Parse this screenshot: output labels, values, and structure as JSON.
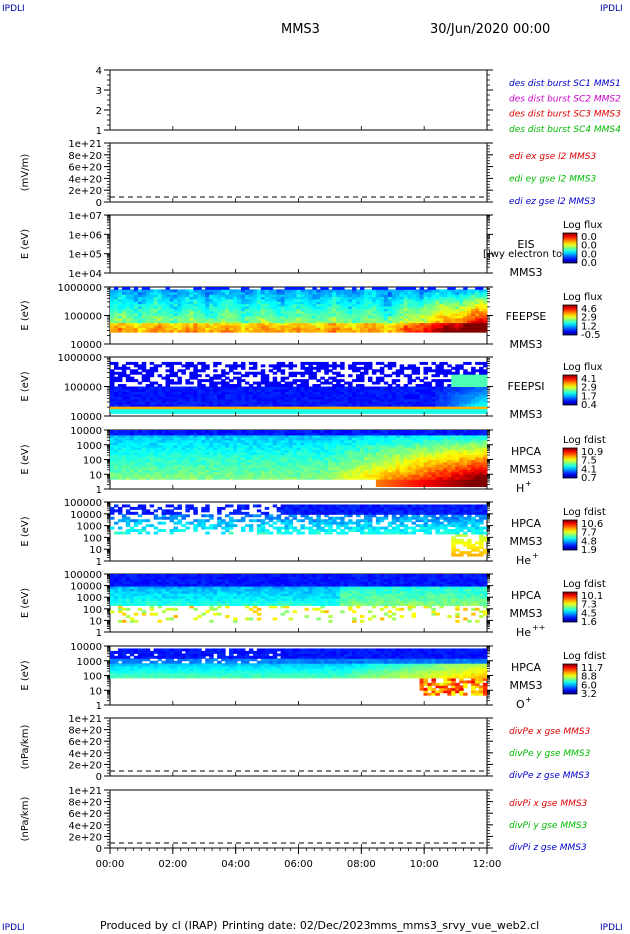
{
  "header": {
    "corner_label": "IPDLI",
    "spacecraft": "MMS3",
    "datetime": "30/Jun/2020 00:00"
  },
  "footer": {
    "produced_by": "Produced by cl (IRAP)",
    "printing_date": "Printing date: 02/Dec/2023",
    "script_name": "mms_mms3_srvy_vue_web2.cl"
  },
  "colors": {
    "blue": "#0000cc",
    "magenta": "#cc00cc",
    "red": "#dd0000",
    "green": "#00bb00",
    "axis": "#000000"
  },
  "chart_data": [
    {
      "type": "line",
      "panel": "burst-intervals",
      "yticks": [
        "1",
        "2",
        "3",
        "4"
      ],
      "ylim": [
        0.7,
        4.3
      ],
      "legend": [
        {
          "text": "des dist burst SC1 MMS1",
          "color": "blue"
        },
        {
          "text": "des dist burst SC2 MMS2",
          "color": "magenta"
        },
        {
          "text": "des dist burst SC3 MMS3",
          "color": "red"
        },
        {
          "text": "des dist burst SC4 MMS4",
          "color": "green"
        }
      ]
    },
    {
      "type": "line",
      "panel": "edi-efield",
      "ylabel": "(mV/m)",
      "yticks": [
        "0",
        "2e+20",
        "4e+20",
        "6e+20",
        "8e+20",
        "1e+21"
      ],
      "ylim": [
        0,
        1e+21
      ],
      "zero_line": true,
      "legend": [
        {
          "text": "edi ex gse l2 MMS3",
          "color": "red"
        },
        {
          "text": "edi ey gse l2 MMS3",
          "color": "green"
        },
        {
          "text": "edi ez gse l2 MMS3",
          "color": "blue"
        }
      ]
    },
    {
      "type": "heatmap",
      "panel": "eis",
      "ylabel": "E (eV)",
      "yticks": [
        "1e+04",
        "1e+05",
        "1e+06",
        "1e+07"
      ],
      "log": true,
      "instrument": "EIS",
      "sc": "MMS3",
      "overlay_text": "[]wy electron to",
      "cbar_title": "Log flux",
      "cbar_ticks": [
        "0.0",
        "0.0",
        "0.0",
        "0.0"
      ]
    },
    {
      "type": "heatmap",
      "panel": "feeps-electrons",
      "ylabel": "E (eV)",
      "yticks": [
        "10000",
        "100000",
        "1000000"
      ],
      "log": true,
      "instrument": "FEEPSE",
      "sc": "MMS3",
      "cbar_title": "Log flux",
      "cbar_ticks": [
        "4.6",
        "2.9",
        "1.2",
        "-0.5"
      ]
    },
    {
      "type": "heatmap",
      "panel": "feeps-ions",
      "ylabel": "E (eV)",
      "yticks": [
        "10000",
        "100000",
        "1000000"
      ],
      "log": true,
      "instrument": "FEEPSI",
      "sc": "MMS3",
      "cbar_title": "Log flux",
      "cbar_ticks": [
        "4.1",
        "2.9",
        "1.7",
        "0.4"
      ]
    },
    {
      "type": "heatmap",
      "panel": "hpca-h",
      "ylabel": "E (eV)",
      "yticks": [
        "1",
        "10",
        "100",
        "1000",
        "10000"
      ],
      "log": true,
      "instrument": "HPCA",
      "sc": "MMS3",
      "species": "H",
      "species_sup": "+",
      "cbar_title": "Log fdist",
      "cbar_ticks": [
        "10.9",
        "7.5",
        "4.1",
        "0.7"
      ]
    },
    {
      "type": "heatmap",
      "panel": "hpca-he",
      "ylabel": "E (eV)",
      "yticks": [
        "1",
        "10",
        "100",
        "1000",
        "10000",
        "100000"
      ],
      "log": true,
      "instrument": "HPCA",
      "sc": "MMS3",
      "species": "He",
      "species_sup": "+",
      "cbar_title": "Log fdist",
      "cbar_ticks": [
        "10.6",
        "7.7",
        "4.8",
        "1.9"
      ]
    },
    {
      "type": "heatmap",
      "panel": "hpca-hepp",
      "ylabel": "E (eV)",
      "yticks": [
        "1",
        "10",
        "100",
        "1000",
        "10000",
        "100000"
      ],
      "log": true,
      "instrument": "HPCA",
      "sc": "MMS3",
      "species": "He",
      "species_sup": "++",
      "cbar_title": "Log fdist",
      "cbar_ticks": [
        "10.1",
        "7.3",
        "4.5",
        "1.6"
      ]
    },
    {
      "type": "heatmap",
      "panel": "hpca-o",
      "ylabel": "E (eV)",
      "yticks": [
        "1",
        "10",
        "100",
        "1000",
        "10000"
      ],
      "log": true,
      "instrument": "HPCA",
      "sc": "MMS3",
      "species": "O",
      "species_sup": "+",
      "cbar_title": "Log fdist",
      "cbar_ticks": [
        "11.7",
        "8.8",
        "6.0",
        "3.2"
      ]
    },
    {
      "type": "line",
      "panel": "div-pe",
      "ylabel": "(nPa/km)",
      "yticks": [
        "0",
        "2e+20",
        "4e+20",
        "6e+20",
        "8e+20",
        "1e+21"
      ],
      "ylim": [
        0,
        1e+21
      ],
      "zero_line": true,
      "legend": [
        {
          "text": "divPe x gse MMS3",
          "color": "red"
        },
        {
          "text": "divPe y gse MMS3",
          "color": "green"
        },
        {
          "text": "divPe z gse MMS3",
          "color": "blue"
        }
      ]
    },
    {
      "type": "line",
      "panel": "div-pi",
      "ylabel": "(nPa/km)",
      "yticks": [
        "0",
        "2e+20",
        "4e+20",
        "6e+20",
        "8e+20",
        "1e+21"
      ],
      "ylim": [
        0,
        1e+21
      ],
      "zero_line": true,
      "legend": [
        {
          "text": "divPi x gse MMS3",
          "color": "red"
        },
        {
          "text": "divPi y gse MMS3",
          "color": "green"
        },
        {
          "text": "divPi z gse MMS3",
          "color": "blue"
        }
      ]
    }
  ],
  "time_axis": {
    "ticks": [
      "00:00",
      "02:00",
      "04:00",
      "06:00",
      "08:00",
      "10:00",
      "12:00"
    ],
    "range_hours": [
      0,
      12
    ]
  }
}
